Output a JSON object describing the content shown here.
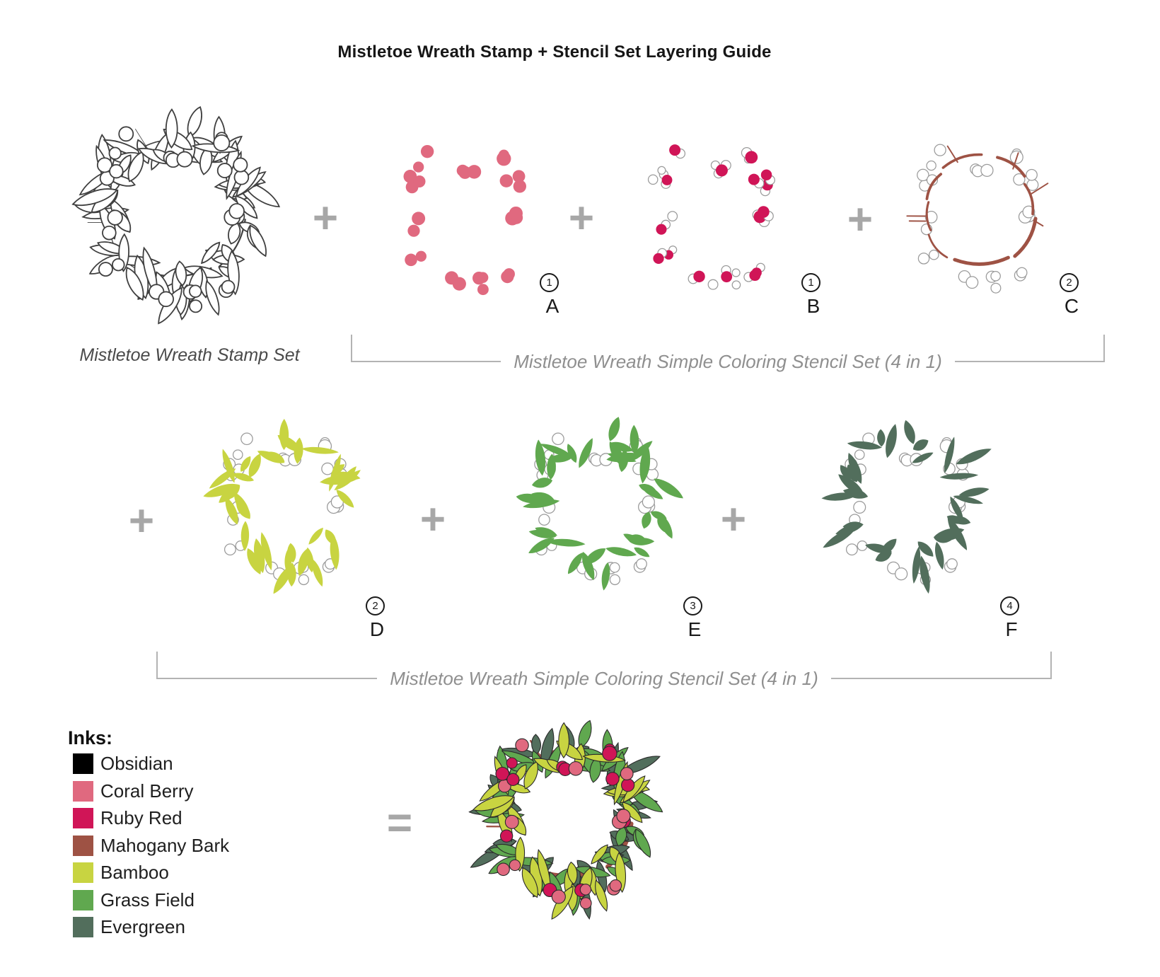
{
  "title": "Mistletoe Wreath Stamp + Stencil Set Layering Guide",
  "ops": {
    "plus": "+",
    "equals": "="
  },
  "colors": {
    "obsidian": "#000000",
    "coral_berry": "#e0697f",
    "ruby_red": "#d01557",
    "mahogany_bark": "#9e5244",
    "bamboo": "#c8d441",
    "grass_field": "#60a84f",
    "evergreen": "#526e5c",
    "outline_gray": "#9b9b9b",
    "stamp_line": "#404040",
    "operator_gray": "#a7a7a7",
    "bracket_gray": "#b3b3b3"
  },
  "row1": {
    "stamp_caption": "Mistletoe Wreath Stamp Set",
    "bracket_caption": "Mistletoe Wreath Simple Coloring Stencil Set (4 in 1)",
    "items": [
      {
        "letter": "A",
        "step": "1"
      },
      {
        "letter": "B",
        "step": "1"
      },
      {
        "letter": "C",
        "step": "2"
      }
    ]
  },
  "row2": {
    "bracket_caption": "Mistletoe Wreath Simple Coloring Stencil Set (4 in 1)",
    "items": [
      {
        "letter": "D",
        "step": "2"
      },
      {
        "letter": "E",
        "step": "3"
      },
      {
        "letter": "F",
        "step": "4"
      }
    ]
  },
  "legend": {
    "heading": "Inks:",
    "items": [
      {
        "name": "Obsidian",
        "color": "#000000"
      },
      {
        "name": "Coral Berry",
        "color": "#e0697f"
      },
      {
        "name": "Ruby Red",
        "color": "#d01557"
      },
      {
        "name": "Mahogany Bark",
        "color": "#9e5244"
      },
      {
        "name": "Bamboo",
        "color": "#c8d441"
      },
      {
        "name": "Grass Field",
        "color": "#60a84f"
      },
      {
        "name": "Evergreen",
        "color": "#526e5c"
      }
    ]
  },
  "wreaths": {
    "stamp": {
      "style": "outline"
    },
    "A": {
      "style": "dots",
      "ink": "coral_berry"
    },
    "B": {
      "style": "dots-with-outlines",
      "ink": "ruby_red"
    },
    "C": {
      "style": "branches",
      "ink": "mahogany_bark"
    },
    "D": {
      "style": "leaves",
      "ink": "bamboo",
      "variant": 1
    },
    "E": {
      "style": "leaves",
      "ink": "grass_field",
      "variant": 2
    },
    "F": {
      "style": "leaves",
      "ink": "evergreen",
      "variant": 3
    },
    "final": {
      "style": "full-color"
    }
  }
}
